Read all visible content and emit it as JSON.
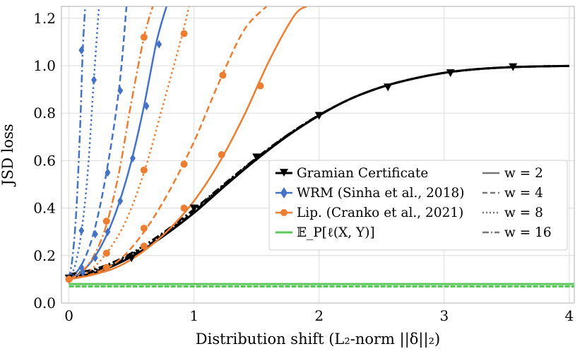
{
  "chart_data": {
    "type": "line",
    "xlabel": "Distribution shift (L₂-norm  ||δ||₂)",
    "ylabel": "JSD loss",
    "xlim": [
      -0.06,
      4.04
    ],
    "ylim": [
      0.0,
      1.25
    ],
    "grid": true,
    "x_ticks": [
      0,
      1,
      2,
      3,
      4
    ],
    "x_tick_labels": [
      "0",
      "1",
      "2",
      "3",
      "4"
    ],
    "y_ticks": [
      0.0,
      0.2,
      0.4,
      0.6,
      0.8,
      1.0,
      1.2
    ],
    "y_tick_labels": [
      "0.0",
      "0.2",
      "0.4",
      "0.6",
      "0.8",
      "1.0",
      "1.2"
    ],
    "legend": {
      "placement": "lower-right",
      "methods": [
        {
          "label": "Gramian Certificate",
          "color": "#000000",
          "marker": "triangle-down"
        },
        {
          "label": "WRM (Sinha et al., 2018)",
          "color": "#4472C4",
          "marker": "diamond"
        },
        {
          "label": "Lip. (Cranko et al., 2021)",
          "color": "#ED7D31",
          "marker": "circle"
        },
        {
          "label": "𝔼_P[ℓ(X, Y)]",
          "color": "#5CC85C",
          "marker": "none"
        }
      ],
      "widths": [
        {
          "label": "w = 2",
          "dash": "solid"
        },
        {
          "label": "w = 4",
          "dash": "dashed"
        },
        {
          "label": "w = 8",
          "dash": "dotted"
        },
        {
          "label": "w = 16",
          "dash": "dashdot"
        }
      ]
    },
    "series": [
      {
        "name": "Gramian Certificate (w=2)",
        "method": "gramian",
        "w": 2,
        "color": "#000000",
        "x": [
          0,
          0.25,
          0.5,
          0.75,
          1.0,
          1.25,
          1.5,
          1.75,
          2.0,
          2.25,
          2.5,
          2.75,
          3.0,
          3.25,
          3.5,
          3.75,
          4.0
        ],
        "y": [
          0.105,
          0.135,
          0.195,
          0.28,
          0.38,
          0.495,
          0.605,
          0.705,
          0.79,
          0.86,
          0.91,
          0.945,
          0.97,
          0.985,
          0.993,
          0.997,
          0.999
        ],
        "markers_x": [
          0,
          0.5,
          1.0,
          1.5,
          2.0,
          2.55,
          3.05,
          3.55
        ],
        "markers_y": [
          0.105,
          0.19,
          0.4,
          0.615,
          0.79,
          0.91,
          0.97,
          0.995
        ]
      },
      {
        "name": "Gramian Certificate (w=4)",
        "method": "gramian",
        "w": 4,
        "color": "#000000",
        "x": [
          0,
          0.25,
          0.5,
          0.75,
          1.0,
          1.25,
          1.5,
          1.75,
          2.0,
          2.25,
          2.5,
          2.75,
          3.0,
          3.25,
          3.5,
          3.75,
          4.0
        ],
        "y": [
          0.11,
          0.14,
          0.2,
          0.285,
          0.385,
          0.5,
          0.608,
          0.707,
          0.791,
          0.86,
          0.91,
          0.945,
          0.97,
          0.985,
          0.993,
          0.997,
          0.999
        ]
      },
      {
        "name": "Gramian Certificate (w=8)",
        "method": "gramian",
        "w": 8,
        "color": "#000000",
        "x": [
          0,
          0.25,
          0.5,
          0.75,
          1.0,
          1.25,
          1.5,
          1.75,
          2.0,
          2.25,
          2.5,
          2.75,
          3.0,
          3.25,
          3.5,
          3.75,
          4.0
        ],
        "y": [
          0.115,
          0.145,
          0.205,
          0.29,
          0.39,
          0.503,
          0.61,
          0.708,
          0.792,
          0.86,
          0.91,
          0.945,
          0.97,
          0.985,
          0.993,
          0.997,
          0.999
        ]
      },
      {
        "name": "Gramian Certificate (w=16)",
        "method": "gramian",
        "w": 16,
        "color": "#000000",
        "x": [
          0,
          0.25,
          0.5,
          0.75,
          1.0,
          1.25,
          1.5,
          1.75,
          2.0,
          2.25,
          2.5,
          2.75,
          3.0,
          3.25,
          3.5,
          3.75,
          4.0
        ],
        "y": [
          0.12,
          0.15,
          0.21,
          0.295,
          0.395,
          0.505,
          0.612,
          0.709,
          0.792,
          0.86,
          0.91,
          0.945,
          0.97,
          0.985,
          0.993,
          0.997,
          0.999
        ]
      },
      {
        "name": "WRM (w=2)",
        "method": "wrm",
        "w": 2,
        "color": "#4472C4",
        "x": [
          0,
          0.1,
          0.2,
          0.3,
          0.4,
          0.5,
          0.6,
          0.7,
          0.78
        ],
        "y": [
          0.1,
          0.13,
          0.19,
          0.285,
          0.42,
          0.6,
          0.83,
          1.1,
          1.25
        ],
        "markers_x": [
          0,
          0.11,
          0.21,
          0.31,
          0.41,
          0.51,
          0.62,
          0.72
        ],
        "markers_y": [
          0.1,
          0.13,
          0.19,
          0.3,
          0.43,
          0.61,
          0.83,
          1.09
        ]
      },
      {
        "name": "WRM (w=4)",
        "method": "wrm",
        "w": 4,
        "color": "#4472C4",
        "x": [
          0,
          0.1,
          0.2,
          0.3,
          0.4,
          0.46
        ],
        "y": [
          0.1,
          0.16,
          0.3,
          0.55,
          0.9,
          1.25
        ],
        "markers_x": [
          0,
          0.1,
          0.21,
          0.31,
          0.41
        ],
        "markers_y": [
          0.1,
          0.15,
          0.29,
          0.55,
          0.895
        ]
      },
      {
        "name": "WRM (w=8)",
        "method": "wrm",
        "w": 8,
        "color": "#4472C4",
        "x": [
          0,
          0.05,
          0.1,
          0.15,
          0.2,
          0.24
        ],
        "y": [
          0.1,
          0.16,
          0.3,
          0.55,
          0.95,
          1.25
        ],
        "markers_x": [
          0,
          0.1,
          0.2
        ],
        "markers_y": [
          0.1,
          0.305,
          0.94
        ]
      },
      {
        "name": "WRM (w=16)",
        "method": "wrm",
        "w": 16,
        "color": "#4472C4",
        "x": [
          0,
          0.03,
          0.06,
          0.09,
          0.11,
          0.13
        ],
        "y": [
          0.1,
          0.2,
          0.4,
          0.75,
          1.06,
          1.25
        ],
        "markers_x": [
          0,
          0.1
        ],
        "markers_y": [
          0.1,
          1.065
        ]
      },
      {
        "name": "Lip. (w=2)",
        "method": "lip",
        "w": 2,
        "color": "#ED7D31",
        "x": [
          0,
          0.2,
          0.4,
          0.6,
          0.8,
          1.0,
          1.2,
          1.4,
          1.6,
          1.8,
          1.9
        ],
        "y": [
          0.1,
          0.12,
          0.155,
          0.22,
          0.31,
          0.43,
          0.59,
          0.79,
          1.02,
          1.21,
          1.25
        ],
        "markers_x": [
          0.6,
          0.92,
          1.22,
          1.53
        ],
        "markers_y": [
          0.24,
          0.4,
          0.625,
          0.915
        ]
      },
      {
        "name": "Lip. (w=4)",
        "method": "lip",
        "w": 4,
        "color": "#ED7D31",
        "x": [
          0,
          0.2,
          0.4,
          0.6,
          0.8,
          1.0,
          1.2,
          1.4,
          1.58
        ],
        "y": [
          0.1,
          0.125,
          0.18,
          0.3,
          0.47,
          0.68,
          0.93,
          1.15,
          1.25
        ],
        "markers_x": [
          0,
          0.3,
          0.6,
          0.92,
          1.23
        ],
        "markers_y": [
          0.1,
          0.15,
          0.315,
          0.585,
          0.96
        ]
      },
      {
        "name": "Lip. (w=8)",
        "method": "lip",
        "w": 8,
        "color": "#ED7D31",
        "x": [
          0,
          0.15,
          0.3,
          0.45,
          0.6,
          0.75,
          0.9,
          0.96
        ],
        "y": [
          0.1,
          0.13,
          0.21,
          0.34,
          0.55,
          0.83,
          1.12,
          1.25
        ],
        "markers_x": [
          0,
          0.3,
          0.6,
          0.92
        ],
        "markers_y": [
          0.1,
          0.21,
          0.56,
          1.135
        ]
      },
      {
        "name": "Lip. (w=16)",
        "method": "lip",
        "w": 16,
        "color": "#ED7D31",
        "x": [
          0,
          0.1,
          0.2,
          0.3,
          0.4,
          0.5,
          0.6,
          0.67
        ],
        "y": [
          0.1,
          0.13,
          0.2,
          0.33,
          0.55,
          0.85,
          1.12,
          1.25
        ],
        "markers_x": [
          0.3,
          0.6
        ],
        "markers_y": [
          0.345,
          1.12
        ]
      },
      {
        "name": "E_P[l(X,Y)]",
        "method": "expected",
        "w": 0,
        "color": "#5CC85C",
        "x": [
          0,
          4.04
        ],
        "y": [
          0.08,
          0.08
        ]
      },
      {
        "name": "E_P[l(X,Y)] band",
        "method": "expected",
        "w": 0,
        "color": "#5CC85C",
        "x": [
          0,
          4.04
        ],
        "y": [
          0.07,
          0.07
        ]
      }
    ]
  }
}
